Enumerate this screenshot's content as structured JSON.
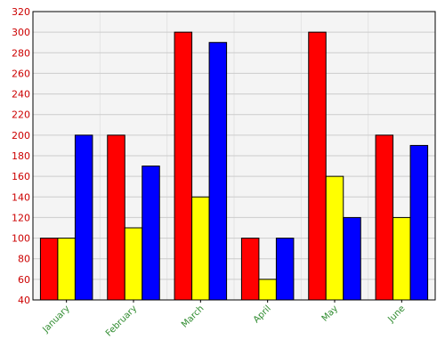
{
  "chart_data": {
    "type": "bar",
    "title": "",
    "xlabel": "",
    "ylabel": "",
    "categories": [
      "January",
      "February",
      "March",
      "April",
      "May",
      "June"
    ],
    "series": [
      {
        "color": "#ff0000",
        "values": [
          100,
          200,
          300,
          100,
          300,
          200
        ]
      },
      {
        "color": "#ffff00",
        "values": [
          100,
          110,
          140,
          60,
          160,
          120
        ]
      },
      {
        "color": "#0000ff",
        "values": [
          200,
          170,
          290,
          100,
          120,
          190
        ]
      }
    ],
    "ylim": [
      40,
      320
    ],
    "yticks": [
      40,
      60,
      80,
      100,
      120,
      140,
      160,
      180,
      200,
      220,
      240,
      260,
      280,
      300,
      320
    ],
    "grid": true,
    "legend": "none"
  }
}
